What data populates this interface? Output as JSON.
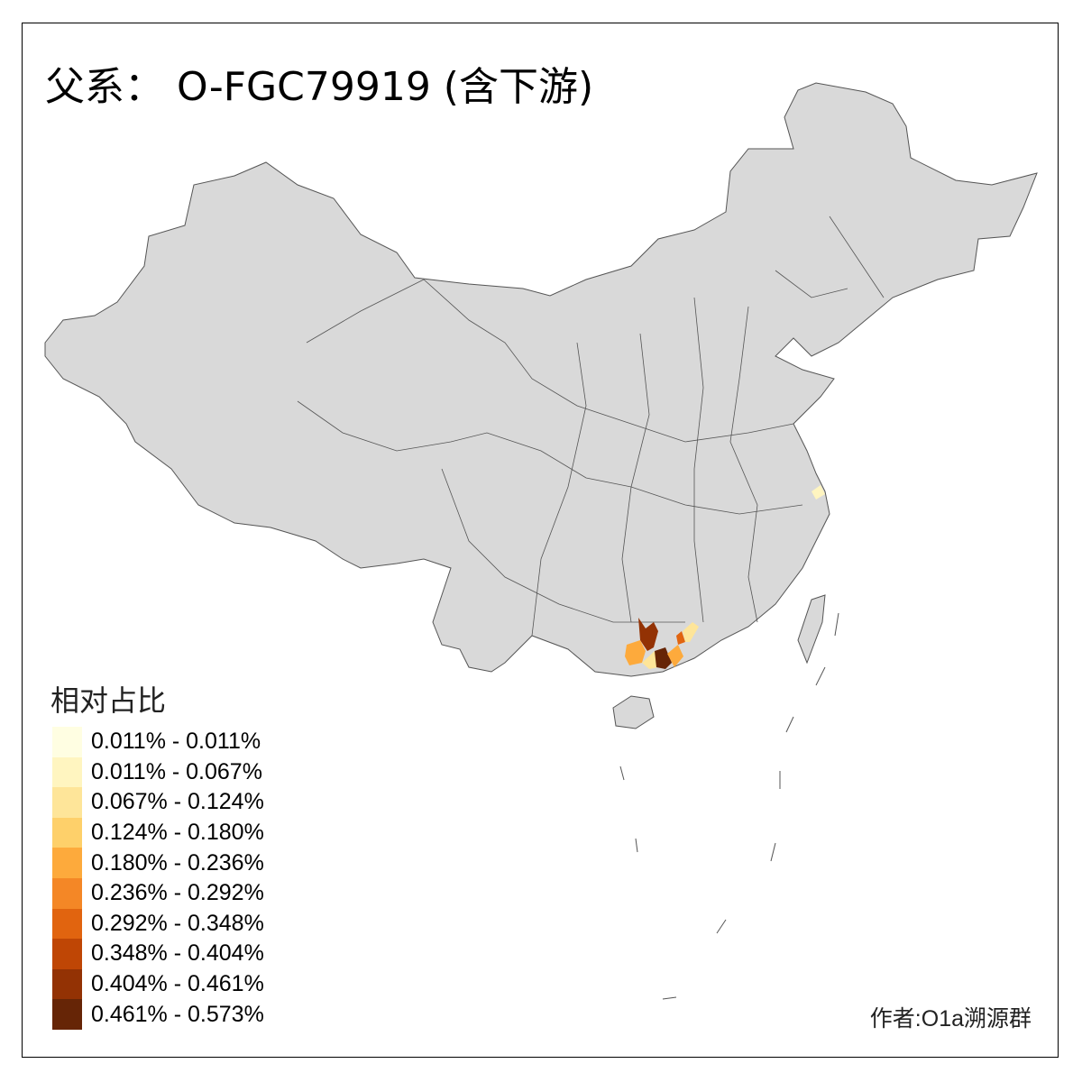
{
  "title": "父系： O-FGC79919 (含下游)",
  "legend": {
    "title": "相对占比",
    "items": [
      {
        "label": "0.011% - 0.011%",
        "color": "#FFFEE2"
      },
      {
        "label": "0.011% - 0.067%",
        "color": "#FFF5C0"
      },
      {
        "label": "0.067% - 0.124%",
        "color": "#FEE599"
      },
      {
        "label": "0.124% - 0.180%",
        "color": "#FED06A"
      },
      {
        "label": "0.180% - 0.236%",
        "color": "#FDAA3C"
      },
      {
        "label": "0.236% - 0.292%",
        "color": "#F48726"
      },
      {
        "label": "0.292% - 0.348%",
        "color": "#E1640F"
      },
      {
        "label": "0.348% - 0.404%",
        "color": "#BF4605"
      },
      {
        "label": "0.404% - 0.461%",
        "color": "#933204"
      },
      {
        "label": "0.461% - 0.573%",
        "color": "#662506"
      }
    ]
  },
  "map": {
    "base_color": "#D9D9D9",
    "border_color": "#555555"
  },
  "author": "作者:O1a溯源群"
}
